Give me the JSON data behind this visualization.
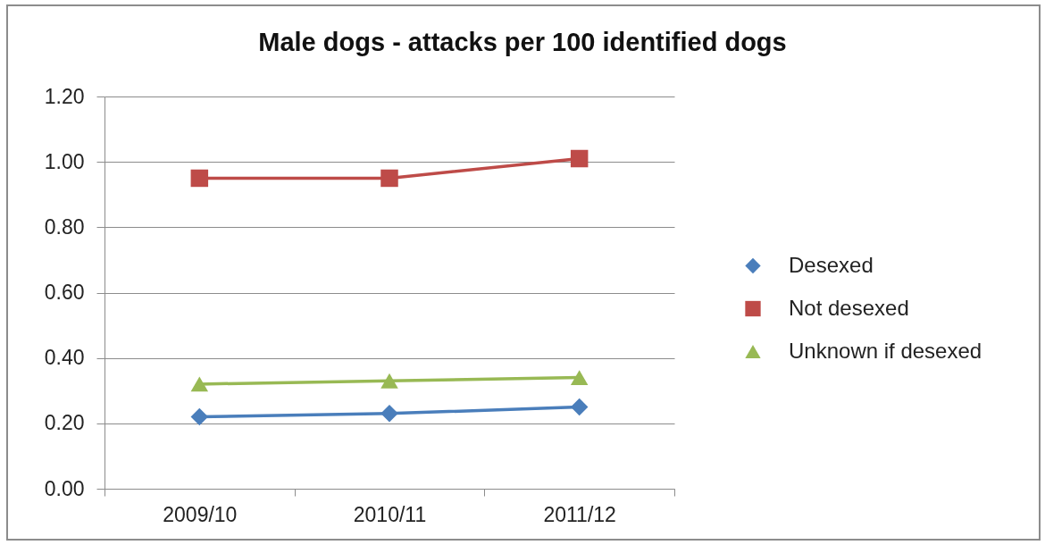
{
  "chart_data": {
    "type": "line",
    "title": "Male dogs - attacks per 100 identified dogs",
    "categories": [
      "2009/10",
      "2010/11",
      "2011/12"
    ],
    "series": [
      {
        "name": "Desexed",
        "color": "#4a7ebb",
        "marker": "diamond",
        "values": [
          0.22,
          0.23,
          0.25
        ]
      },
      {
        "name": "Not desexed",
        "color": "#be4b48",
        "marker": "square",
        "values": [
          0.95,
          0.95,
          1.01
        ]
      },
      {
        "name": "Unknown if desexed",
        "color": "#98b954",
        "marker": "triangle",
        "values": [
          0.32,
          0.33,
          0.34
        ]
      }
    ],
    "ylim": [
      0,
      1.2
    ],
    "yticks": [
      {
        "value": 0,
        "label": "0.00"
      },
      {
        "value": 0.2,
        "label": "0.20"
      },
      {
        "value": 0.4,
        "label": "0.40"
      },
      {
        "value": 0.6,
        "label": "0.60"
      },
      {
        "value": 0.8,
        "label": "0.80"
      },
      {
        "value": 1,
        "label": "1.00"
      },
      {
        "value": 1.2,
        "label": "1.20"
      }
    ],
    "grid": "y",
    "legend": "right",
    "line_style": "solid"
  }
}
